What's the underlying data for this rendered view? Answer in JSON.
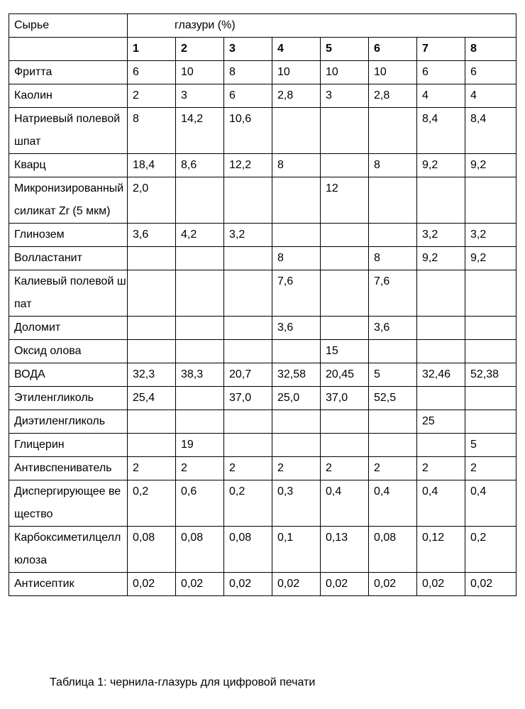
{
  "table": {
    "header": {
      "material_label": "Сырье",
      "glaze_label": "глазури (%)"
    },
    "columns": [
      "1",
      "2",
      "3",
      "4",
      "5",
      "6",
      "7",
      "8"
    ],
    "rows": [
      {
        "name": "Фритта",
        "values": [
          "6",
          "10",
          "8",
          "10",
          "10",
          "10",
          "6",
          "6"
        ]
      },
      {
        "name": "Каолин",
        "values": [
          "2",
          "3",
          "6",
          "2,8",
          "3",
          "2,8",
          "4",
          "4"
        ]
      },
      {
        "name": "Натриевый полевой шпат",
        "values": [
          "8",
          "14,2",
          "10,6",
          "",
          "",
          "",
          "8,4",
          "8,4"
        ]
      },
      {
        "name": "Кварц",
        "values": [
          "18,4",
          "8,6",
          "12,2",
          "8",
          "",
          "8",
          "9,2",
          "9,2"
        ]
      },
      {
        "name": "Микронизированный силикат Zr (5 мкм)",
        "values": [
          "2,0",
          "",
          "",
          "",
          "12",
          "",
          "",
          ""
        ]
      },
      {
        "name": "Глинозем",
        "values": [
          "3,6",
          "4,2",
          "3,2",
          "",
          "",
          "",
          "3,2",
          "3,2"
        ]
      },
      {
        "name": "Волластанит",
        "values": [
          "",
          "",
          "",
          "8",
          "",
          "8",
          "9,2",
          "9,2"
        ]
      },
      {
        "name": "Калиевый полевой шпат",
        "values": [
          "",
          "",
          "",
          "7,6",
          "",
          "7,6",
          "",
          ""
        ]
      },
      {
        "name": "Доломит",
        "values": [
          "",
          "",
          "",
          "3,6",
          "",
          "3,6",
          "",
          ""
        ]
      },
      {
        "name": "Оксид олова",
        "values": [
          "",
          "",
          "",
          "",
          "15",
          "",
          "",
          ""
        ]
      },
      {
        "name": "ВОДА",
        "values": [
          "32,3",
          "38,3",
          "20,7",
          "32,58",
          "20,45",
          "5",
          "32,46",
          "52,38"
        ]
      },
      {
        "name": "Этиленгликоль",
        "values": [
          "25,4",
          "",
          "37,0",
          "25,0",
          "37,0",
          "52,5",
          "",
          ""
        ]
      },
      {
        "name": "Диэтиленгликоль",
        "values": [
          "",
          "",
          "",
          "",
          "",
          "",
          "25",
          ""
        ]
      },
      {
        "name": "Глицерин",
        "values": [
          "",
          "19",
          "",
          "",
          "",
          "",
          "",
          "5"
        ]
      },
      {
        "name": "Антивспениватель",
        "values": [
          "2",
          "2",
          "2",
          "2",
          "2",
          "2",
          "2",
          "2"
        ]
      },
      {
        "name": "Диспергирующее вещество",
        "values": [
          "0,2",
          "0,6",
          "0,2",
          "0,3",
          "0,4",
          "0,4",
          "0,4",
          "0,4"
        ]
      },
      {
        "name": "Карбоксиметилцеллюлоза",
        "values": [
          "0,08",
          "0,08",
          "0,08",
          "0,1",
          "0,13",
          "0,08",
          "0,12",
          "0,2"
        ]
      },
      {
        "name": "Антисептик",
        "values": [
          "0,02",
          "0,02",
          "0,02",
          "0,02",
          "0,02",
          "0,02",
          "0,02",
          "0,02"
        ]
      }
    ]
  },
  "caption": "Таблица 1: чернила-глазурь для цифровой печати"
}
